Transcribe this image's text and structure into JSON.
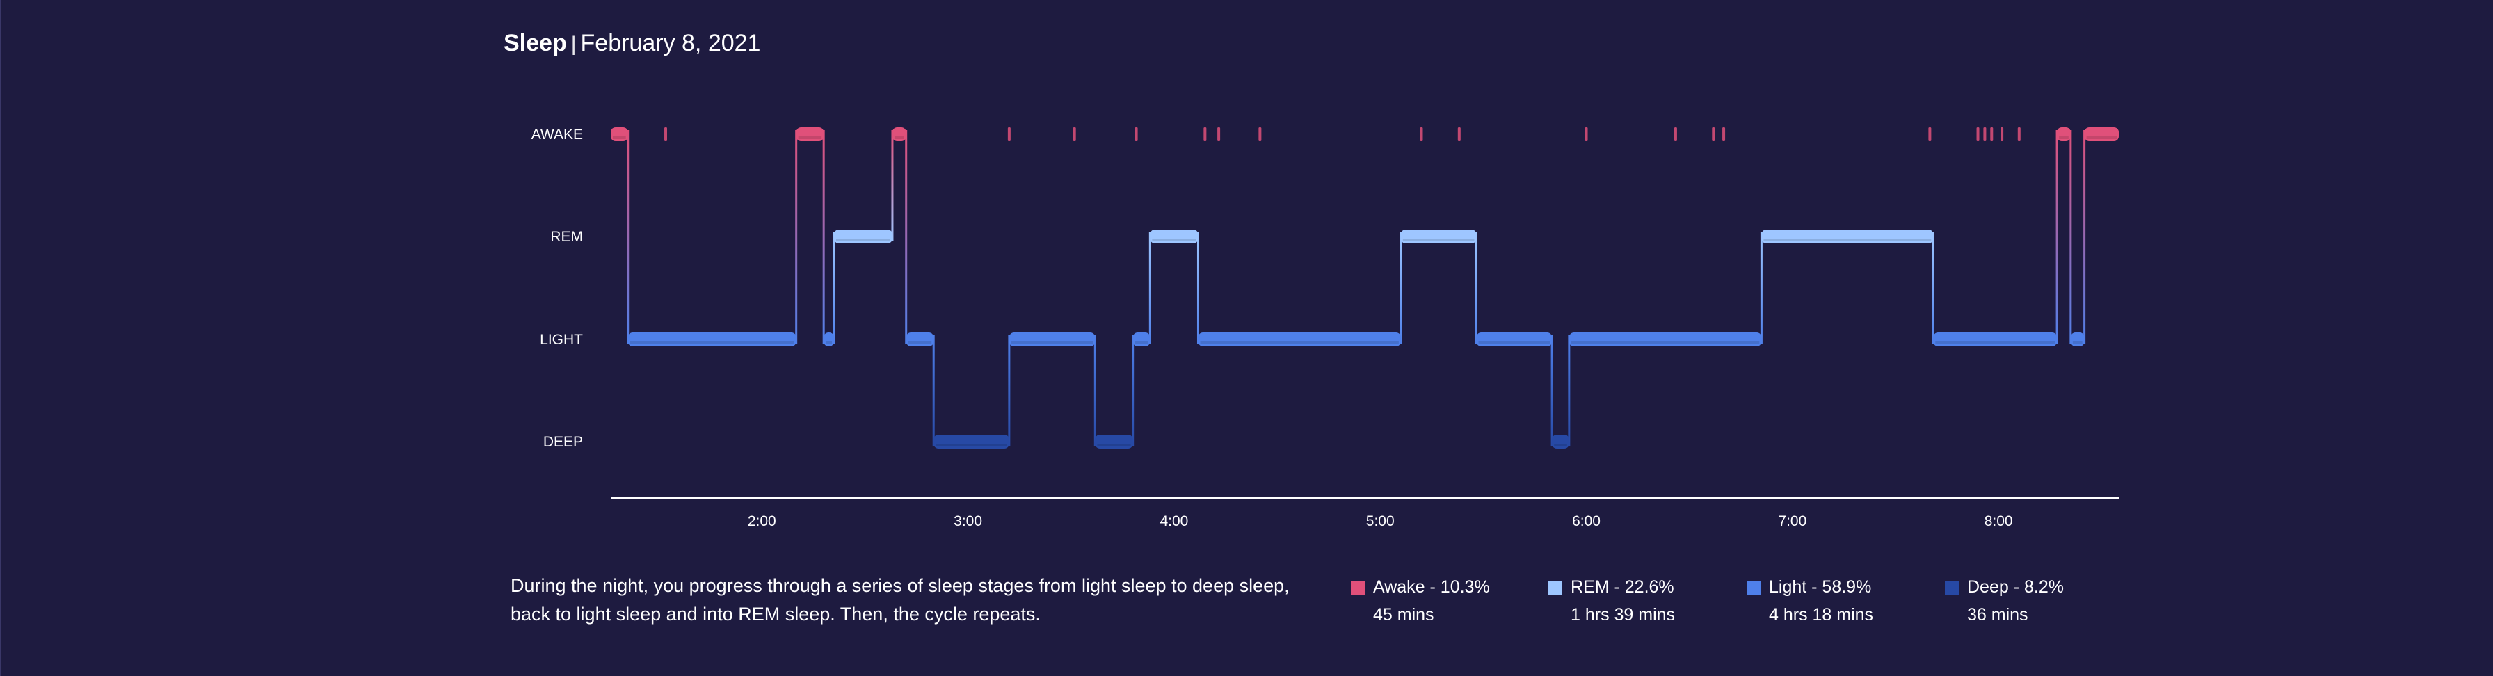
{
  "title": {
    "main": "Sleep",
    "separator": "|",
    "date": "February 8, 2021"
  },
  "description": "During the night, you progress through a series of sleep stages from light sleep to deep sleep, back to light sleep and into REM sleep. Then, the cycle repeats.",
  "colors": {
    "background": "#1e1b40",
    "awake": "#e0507a",
    "rem": "#9ec6ff",
    "light": "#4f80ea",
    "deep": "#2749a5"
  },
  "legend": [
    {
      "key": "awake",
      "label": "Awake - 10.3%",
      "duration": "45 mins",
      "color": "#e0507a"
    },
    {
      "key": "rem",
      "label": "REM - 22.6%",
      "duration": "1 hrs 39 mins",
      "color": "#9ec6ff"
    },
    {
      "key": "light",
      "label": "Light - 58.9%",
      "duration": "4 hrs 18 mins",
      "color": "#4f80ea"
    },
    {
      "key": "deep",
      "label": "Deep - 8.2%",
      "duration": "36 mins",
      "color": "#2749a5"
    }
  ],
  "chart_data": {
    "type": "step",
    "title": "Sleep",
    "stages": [
      "AWAKE",
      "REM",
      "LIGHT",
      "DEEP"
    ],
    "x_axis": {
      "min": "1:16",
      "max": "8:35",
      "ticks": [
        "2:00",
        "3:00",
        "4:00",
        "5:00",
        "6:00",
        "7:00",
        "8:00"
      ]
    },
    "segments": [
      {
        "stage": "AWAKE",
        "start": "1:16",
        "end": "1:21"
      },
      {
        "stage": "LIGHT",
        "start": "1:21",
        "end": "2:10"
      },
      {
        "stage": "AWAKE",
        "start": "2:10",
        "end": "2:18"
      },
      {
        "stage": "LIGHT",
        "start": "2:18",
        "end": "2:21"
      },
      {
        "stage": "REM",
        "start": "2:21",
        "end": "2:38"
      },
      {
        "stage": "AWAKE",
        "start": "2:38",
        "end": "2:42"
      },
      {
        "stage": "LIGHT",
        "start": "2:42",
        "end": "2:50"
      },
      {
        "stage": "DEEP",
        "start": "2:50",
        "end": "3:12"
      },
      {
        "stage": "LIGHT",
        "start": "3:12",
        "end": "3:37"
      },
      {
        "stage": "DEEP",
        "start": "3:37",
        "end": "3:48"
      },
      {
        "stage": "LIGHT",
        "start": "3:48",
        "end": "3:53"
      },
      {
        "stage": "REM",
        "start": "3:53",
        "end": "4:07"
      },
      {
        "stage": "LIGHT",
        "start": "4:07",
        "end": "5:06"
      },
      {
        "stage": "REM",
        "start": "5:06",
        "end": "5:28"
      },
      {
        "stage": "LIGHT",
        "start": "5:28",
        "end": "5:50"
      },
      {
        "stage": "DEEP",
        "start": "5:50",
        "end": "5:55"
      },
      {
        "stage": "LIGHT",
        "start": "5:55",
        "end": "6:51"
      },
      {
        "stage": "REM",
        "start": "6:51",
        "end": "7:41"
      },
      {
        "stage": "LIGHT",
        "start": "7:41",
        "end": "8:17"
      },
      {
        "stage": "AWAKE",
        "start": "8:17",
        "end": "8:21"
      },
      {
        "stage": "LIGHT",
        "start": "8:21",
        "end": "8:25"
      },
      {
        "stage": "AWAKE",
        "start": "8:25",
        "end": "8:35"
      }
    ],
    "brief_awakenings": [
      "1:32",
      "3:12",
      "3:31",
      "3:49",
      "4:09",
      "4:13",
      "4:25",
      "5:12",
      "5:23",
      "6:00",
      "6:26",
      "6:37",
      "6:40",
      "7:40",
      "7:54",
      "7:56",
      "7:58",
      "8:01",
      "8:06"
    ],
    "summary": [
      {
        "stage": "Awake",
        "percent": 10.3,
        "minutes": 45
      },
      {
        "stage": "REM",
        "percent": 22.6,
        "minutes": 99
      },
      {
        "stage": "Light",
        "percent": 58.9,
        "minutes": 258
      },
      {
        "stage": "Deep",
        "percent": 8.2,
        "minutes": 36
      }
    ]
  }
}
